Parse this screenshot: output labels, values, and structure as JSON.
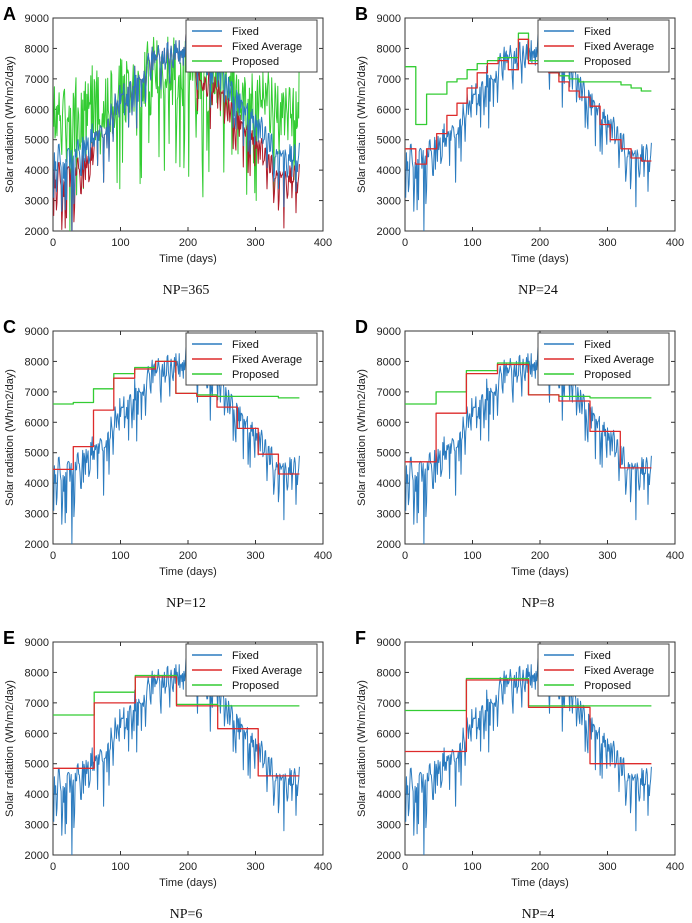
{
  "colors": {
    "fixed": "#2b7bbf",
    "fixed_average": "#dd2b2b",
    "proposed": "#33cc33",
    "panel_a_average": "#b01c2a",
    "axis": "#333333"
  },
  "legend": [
    "Fixed",
    "Fixed Average",
    "Proposed"
  ],
  "chart_data": [
    {
      "type": "line",
      "panel": "A",
      "caption": "NP=365",
      "xlabel": "Time (days)",
      "ylabel": "Solar radiation (Wh/m2/day)",
      "xlim": [
        0,
        400
      ],
      "ylim": [
        2000,
        9000
      ],
      "xticks": [
        "0",
        "100",
        "200",
        "300",
        "400"
      ],
      "yticks": [
        "2000",
        "3000",
        "4000",
        "5000",
        "6000",
        "7000",
        "8000",
        "9000"
      ],
      "series": [
        {
          "name": "Fixed",
          "kind": "fixed"
        },
        {
          "name": "Fixed Average",
          "kind": "fixed",
          "color_key": "panel_a_average"
        },
        {
          "name": "Proposed",
          "kind": "proposed_daily"
        }
      ]
    },
    {
      "type": "line",
      "panel": "B",
      "caption": "NP=24",
      "xlabel": "Time (days)",
      "ylabel": "Solar radiation (Wh/m2/day)",
      "xlim": [
        0,
        400
      ],
      "ylim": [
        2000,
        9000
      ],
      "xticks": [
        "0",
        "100",
        "200",
        "300",
        "400"
      ],
      "yticks": [
        "2000",
        "3000",
        "4000",
        "5000",
        "6000",
        "7000",
        "8000",
        "9000"
      ],
      "series": [
        {
          "name": "Fixed",
          "kind": "fixed"
        },
        {
          "name": "Fixed Average",
          "kind": "step",
          "breaks": [
            0,
            16,
            32,
            47,
            62,
            77,
            92,
            107,
            122,
            138,
            153,
            168,
            183,
            198,
            213,
            228,
            243,
            258,
            274,
            289,
            304,
            320,
            335,
            350,
            365
          ],
          "values": [
            4700,
            4200,
            4700,
            5200,
            5800,
            6200,
            6700,
            7200,
            7500,
            7600,
            7300,
            8300,
            7500,
            7300,
            7200,
            6900,
            6600,
            6400,
            6100,
            5500,
            5000,
            4700,
            4400,
            4300
          ]
        },
        {
          "name": "Proposed",
          "kind": "step",
          "breaks": [
            0,
            16,
            32,
            47,
            62,
            77,
            92,
            107,
            122,
            138,
            153,
            168,
            183,
            198,
            213,
            228,
            243,
            258,
            274,
            289,
            304,
            320,
            335,
            350,
            365
          ],
          "values": [
            7400,
            5500,
            6500,
            6500,
            6900,
            7000,
            7300,
            7500,
            7600,
            7700,
            7700,
            8500,
            7600,
            7400,
            7300,
            7100,
            7000,
            6900,
            6900,
            6900,
            6900,
            6800,
            6700,
            6600
          ]
        }
      ]
    },
    {
      "type": "line",
      "panel": "C",
      "caption": "NP=12",
      "xlabel": "Time (days)",
      "ylabel": "Solar radiation (Wh/m2/day)",
      "xlim": [
        0,
        400
      ],
      "ylim": [
        2000,
        9000
      ],
      "xticks": [
        "0",
        "100",
        "200",
        "300",
        "400"
      ],
      "yticks": [
        "2000",
        "3000",
        "4000",
        "5000",
        "6000",
        "7000",
        "8000",
        "9000"
      ],
      "series": [
        {
          "name": "Fixed",
          "kind": "fixed"
        },
        {
          "name": "Fixed Average",
          "kind": "step",
          "breaks": [
            0,
            30,
            60,
            90,
            121,
            152,
            182,
            213,
            243,
            273,
            304,
            334,
            365
          ],
          "values": [
            4450,
            5200,
            6400,
            7450,
            7750,
            8000,
            6950,
            6850,
            6500,
            5800,
            4950,
            4300
          ]
        },
        {
          "name": "Proposed",
          "kind": "step",
          "breaks": [
            0,
            30,
            60,
            90,
            121,
            152,
            182,
            213,
            243,
            273,
            304,
            334,
            365
          ],
          "values": [
            6600,
            6650,
            7100,
            7600,
            7800,
            8000,
            6950,
            6900,
            6850,
            6850,
            6850,
            6800
          ]
        }
      ]
    },
    {
      "type": "line",
      "panel": "D",
      "caption": "NP=8",
      "xlabel": "Time (days)",
      "ylabel": "Solar radiation (Wh/m2/day)",
      "xlim": [
        0,
        400
      ],
      "ylim": [
        2000,
        9000
      ],
      "xticks": [
        "0",
        "100",
        "200",
        "300",
        "400"
      ],
      "yticks": [
        "2000",
        "3000",
        "4000",
        "5000",
        "6000",
        "7000",
        "8000",
        "9000"
      ],
      "series": [
        {
          "name": "Fixed",
          "kind": "fixed"
        },
        {
          "name": "Fixed Average",
          "kind": "step",
          "breaks": [
            0,
            46,
            91,
            137,
            183,
            228,
            274,
            319,
            365
          ],
          "values": [
            4700,
            6300,
            7600,
            7900,
            6900,
            6700,
            5700,
            4500
          ]
        },
        {
          "name": "Proposed",
          "kind": "step",
          "breaks": [
            0,
            46,
            91,
            137,
            183,
            228,
            274,
            319,
            365
          ],
          "values": [
            6600,
            7000,
            7700,
            7950,
            6900,
            6850,
            6800,
            6800
          ]
        }
      ]
    },
    {
      "type": "line",
      "panel": "E",
      "caption": "NP=6",
      "xlabel": "Time (days)",
      "ylabel": "Solar radiation (Wh/m2/day)",
      "xlim": [
        0,
        400
      ],
      "ylim": [
        2000,
        9000
      ],
      "xticks": [
        "0",
        "100",
        "200",
        "300",
        "400"
      ],
      "yticks": [
        "2000",
        "3000",
        "4000",
        "5000",
        "6000",
        "7000",
        "8000",
        "9000"
      ],
      "series": [
        {
          "name": "Fixed",
          "kind": "fixed"
        },
        {
          "name": "Fixed Average",
          "kind": "step",
          "breaks": [
            0,
            61,
            122,
            183,
            244,
            304,
            365
          ],
          "values": [
            4850,
            7000,
            7850,
            6900,
            6150,
            4600
          ]
        },
        {
          "name": "Proposed",
          "kind": "step",
          "breaks": [
            0,
            61,
            122,
            183,
            244,
            304,
            365
          ],
          "values": [
            6600,
            7350,
            7900,
            6950,
            6900,
            6900
          ]
        }
      ]
    },
    {
      "type": "line",
      "panel": "F",
      "caption": "NP=4",
      "xlabel": "Time (days)",
      "ylabel": "Solar radiation (Wh/m2/day)",
      "xlim": [
        0,
        400
      ],
      "ylim": [
        2000,
        9000
      ],
      "xticks": [
        "0",
        "100",
        "200",
        "300",
        "400"
      ],
      "yticks": [
        "2000",
        "3000",
        "4000",
        "5000",
        "6000",
        "7000",
        "8000",
        "9000"
      ],
      "series": [
        {
          "name": "Fixed",
          "kind": "fixed"
        },
        {
          "name": "Fixed Average",
          "kind": "step",
          "breaks": [
            0,
            91,
            183,
            274,
            365
          ],
          "values": [
            5400,
            7750,
            6850,
            5000
          ]
        },
        {
          "name": "Proposed",
          "kind": "step",
          "breaks": [
            0,
            91,
            183,
            274,
            365
          ],
          "values": [
            6750,
            7800,
            6900,
            6900
          ]
        }
      ]
    }
  ]
}
